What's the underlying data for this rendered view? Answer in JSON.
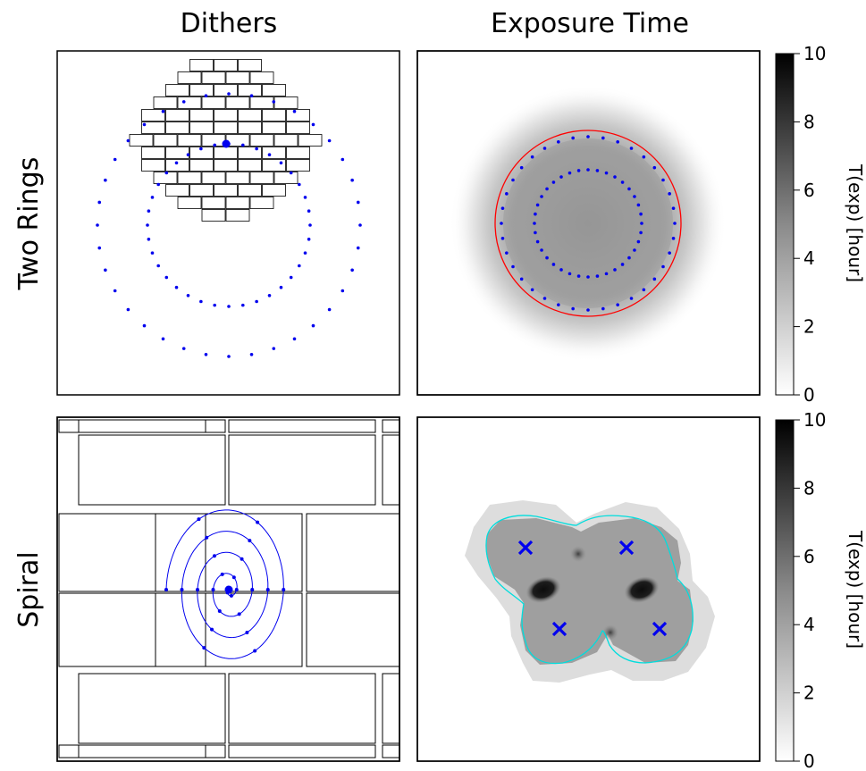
{
  "column_titles": [
    "Dithers",
    "Exposure Time"
  ],
  "row_titles": [
    "Two Rings",
    "Spiral"
  ],
  "colorbar": {
    "label": "T(exp) [hour]",
    "ticks": [
      0,
      2,
      4,
      6,
      8,
      10
    ],
    "range": [
      0,
      10
    ],
    "colormap": "gray_r"
  },
  "colors": {
    "dither_points": "#0000ee",
    "ring_outline": "#ff0000",
    "spiral_outline": "#00dddd",
    "tile_edges": "#000000"
  },
  "chart_data": [
    {
      "type": "scatter",
      "panel": "Two Rings - Dithers",
      "description_of_marks": "focal-plane brick tiling with dither offsets on two concentric rings",
      "series": [
        {
          "ring": "inner",
          "points": 36,
          "radius": 1.0
        },
        {
          "ring": "outer",
          "points": 36,
          "radius": 1.62
        }
      ],
      "grid": false
    },
    {
      "type": "heatmap",
      "panel": "Two Rings - Exposure Time",
      "value_range": [
        0,
        10
      ],
      "overlays": [
        "inner dither ring",
        "outer dither ring",
        "red circle"
      ]
    },
    {
      "type": "line",
      "panel": "Spiral - Dithers",
      "series": [
        {
          "turns": 4,
          "points": 24
        }
      ]
    },
    {
      "type": "heatmap",
      "panel": "Spiral - Exposure Time",
      "value_range": [
        0,
        10
      ],
      "overlays": [
        "cyan outline",
        "4 x markers"
      ],
      "markers": [
        {
          "symbol": "x",
          "label": ""
        },
        {
          "symbol": "x",
          "label": ""
        },
        {
          "symbol": "x",
          "label": ""
        },
        {
          "symbol": "x",
          "label": ""
        }
      ]
    }
  ]
}
